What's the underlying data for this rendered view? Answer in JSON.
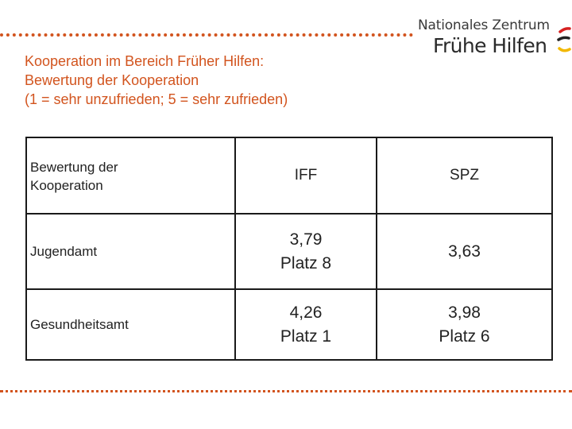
{
  "logo": {
    "line1": "Nationales Zentrum",
    "line2": "Frühe Hilfen"
  },
  "title": {
    "line1": "Kooperation im Bereich Früher Hilfen:",
    "line2": "Bewertung der Kooperation",
    "line3": "(1 = sehr unzufrieden; 5 = sehr zufrieden)"
  },
  "table": {
    "headers": {
      "col0_line1": "Bewertung der",
      "col0_line2": "Kooperation",
      "col1": "IFF",
      "col2": "SPZ"
    },
    "rows": [
      {
        "label": "Jugendamt",
        "iff_value": "3,79",
        "iff_rank": "Platz 8",
        "spz_value": "3,63",
        "spz_rank": ""
      },
      {
        "label": "Gesundheitsamt",
        "iff_value": "4,26",
        "iff_rank": "Platz 1",
        "spz_value": "3,98",
        "spz_rank": "Platz 6"
      }
    ]
  },
  "colors": {
    "accent": "#d2541e",
    "text": "#222222",
    "border": "#1a1a1a",
    "logo_red": "#d62020",
    "logo_gold": "#f2b800"
  }
}
